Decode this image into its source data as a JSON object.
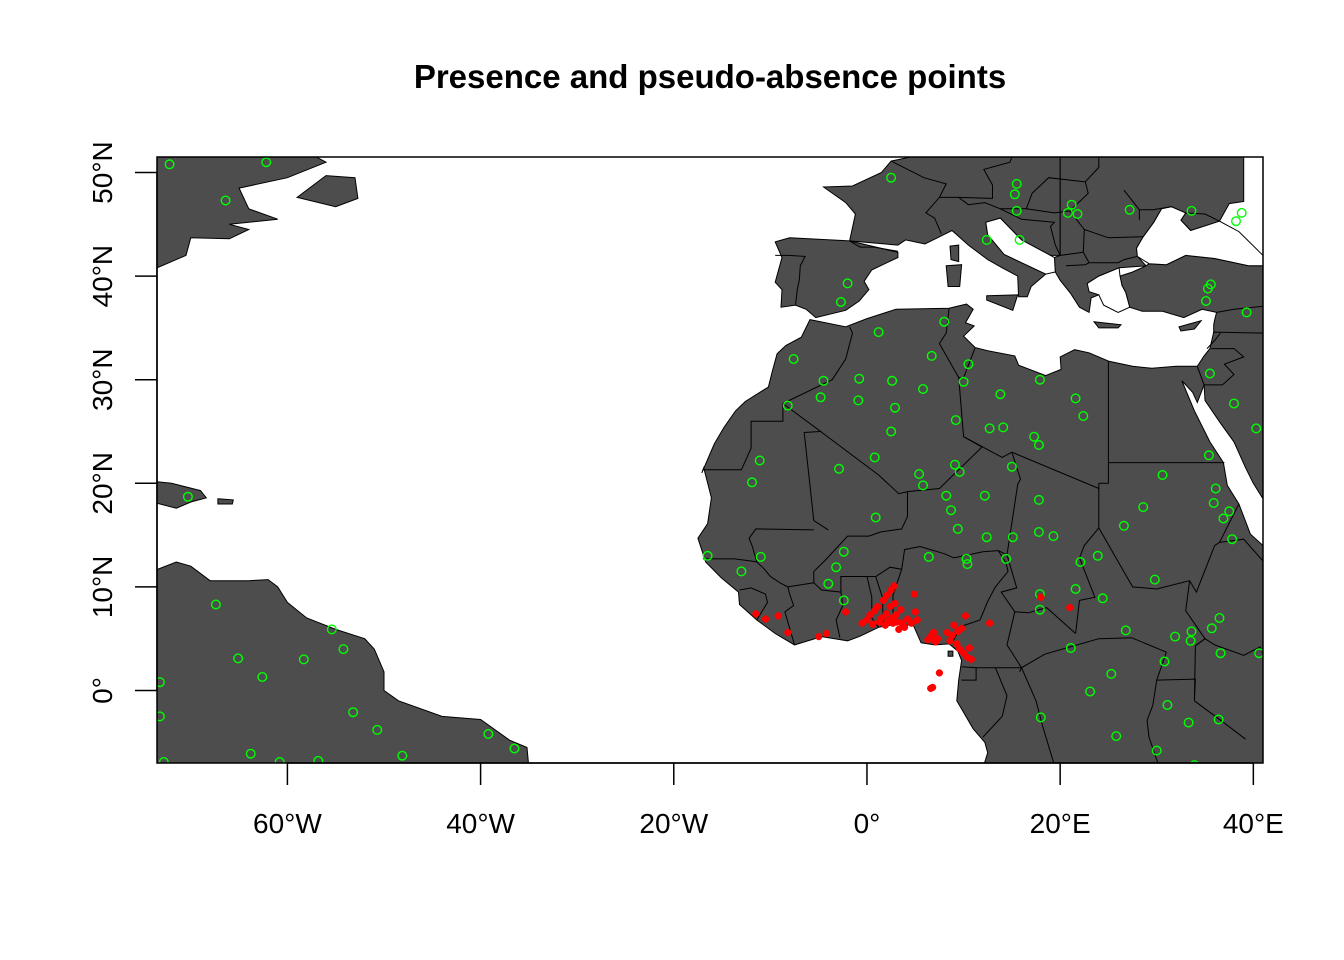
{
  "title": "Presence and pseudo-absence points",
  "map": {
    "extent": {
      "lon": [
        -73.5,
        41
      ],
      "lat": [
        -7,
        51.5
      ]
    },
    "colors": {
      "land": "#4d4d4d",
      "ocean": "#ffffff",
      "border": "#000000",
      "presence": "#ff0000",
      "absence": "#00ff00"
    },
    "x_ticks": [
      {
        "value": -60,
        "label": "60°W"
      },
      {
        "value": -40,
        "label": "40°W"
      },
      {
        "value": -20,
        "label": "20°W"
      },
      {
        "value": 0,
        "label": "0°"
      },
      {
        "value": 20,
        "label": "20°E"
      },
      {
        "value": 40,
        "label": "40°E"
      }
    ],
    "y_ticks": [
      {
        "value": 0,
        "label": "0°"
      },
      {
        "value": 10,
        "label": "10°N"
      },
      {
        "value": 20,
        "label": "20°N"
      },
      {
        "value": 30,
        "label": "30°N"
      },
      {
        "value": 40,
        "label": "40°N"
      },
      {
        "value": 50,
        "label": "50°N"
      }
    ],
    "presence_points": [
      [
        -11.5,
        7.4
      ],
      [
        -10.5,
        6.9
      ],
      [
        -9.2,
        7.2
      ],
      [
        -8.2,
        5.6
      ],
      [
        -5,
        5.2
      ],
      [
        -4.2,
        5.5
      ],
      [
        -2.2,
        7.6
      ],
      [
        -0.5,
        6.5
      ],
      [
        0,
        6.8
      ],
      [
        0.3,
        7.3
      ],
      [
        0.6,
        6.4
      ],
      [
        0.8,
        7.7
      ],
      [
        1.1,
        8.1
      ],
      [
        1.3,
        6.6
      ],
      [
        1.5,
        7.0
      ],
      [
        1.7,
        8.7
      ],
      [
        1.9,
        6.3
      ],
      [
        2.0,
        7.4
      ],
      [
        2.1,
        9.2
      ],
      [
        2.2,
        6.7
      ],
      [
        2.4,
        8.1
      ],
      [
        2.5,
        9.7
      ],
      [
        2.6,
        7.0
      ],
      [
        2.7,
        6.5
      ],
      [
        2.8,
        10.1
      ],
      [
        2.9,
        8.4
      ],
      [
        3.0,
        7.3
      ],
      [
        3.1,
        6.6
      ],
      [
        3.3,
        5.9
      ],
      [
        3.5,
        7.8
      ],
      [
        3.6,
        6.5
      ],
      [
        3.9,
        6.1
      ],
      [
        4.2,
        6.9
      ],
      [
        4.6,
        6.5
      ],
      [
        4.9,
        9.3
      ],
      [
        5.0,
        7.6
      ],
      [
        5.2,
        6.8
      ],
      [
        6.3,
        4.9
      ],
      [
        6.6,
        5.2
      ],
      [
        6.9,
        5.6
      ],
      [
        7.1,
        4.7
      ],
      [
        7.3,
        5.0
      ],
      [
        7.5,
        1.7
      ],
      [
        6.6,
        0.2
      ],
      [
        6.8,
        0.3
      ],
      [
        8.3,
        5.6
      ],
      [
        8.6,
        4.8
      ],
      [
        8.8,
        5.3
      ],
      [
        9.0,
        6.3
      ],
      [
        9.3,
        4.5
      ],
      [
        9.4,
        5.7
      ],
      [
        9.6,
        4.0
      ],
      [
        9.8,
        6.0
      ],
      [
        10.0,
        3.6
      ],
      [
        10.2,
        7.2
      ],
      [
        10.4,
        3.2
      ],
      [
        10.6,
        4.1
      ],
      [
        10.8,
        3.0
      ],
      [
        12.7,
        6.5
      ],
      [
        18.0,
        9.0
      ],
      [
        21.0,
        8.0
      ]
    ],
    "absence_points": [
      [
        -72.2,
        50.8
      ],
      [
        -62.2,
        51.0
      ],
      [
        -66.4,
        47.3
      ],
      [
        -70.3,
        18.7
      ],
      [
        -67.4,
        8.3
      ],
      [
        -65.1,
        3.1
      ],
      [
        -62.6,
        1.3
      ],
      [
        -58.3,
        3.0
      ],
      [
        -55.4,
        5.9
      ],
      [
        -54.2,
        4.0
      ],
      [
        -73.2,
        0.8
      ],
      [
        -73.2,
        -2.5
      ],
      [
        -72.8,
        -6.9
      ],
      [
        -53.2,
        -2.1
      ],
      [
        -50.7,
        -3.8
      ],
      [
        -48.1,
        -6.3
      ],
      [
        -63.8,
        -6.1
      ],
      [
        -60.8,
        -6.9
      ],
      [
        -56.8,
        -6.8
      ],
      [
        -39.2,
        -4.2
      ],
      [
        -36.5,
        -5.6
      ],
      [
        -16.5,
        13.0
      ],
      [
        -13.0,
        11.5
      ],
      [
        -11.0,
        12.9
      ],
      [
        -11.9,
        20.1
      ],
      [
        -11.1,
        22.2
      ],
      [
        -8.2,
        27.5
      ],
      [
        -7.6,
        32.0
      ],
      [
        -4.5,
        29.9
      ],
      [
        -4.8,
        28.3
      ],
      [
        -4.0,
        10.3
      ],
      [
        -3.2,
        11.9
      ],
      [
        -2.4,
        13.4
      ],
      [
        -2.4,
        8.7
      ],
      [
        -2.9,
        21.4
      ],
      [
        -0.8,
        30.1
      ],
      [
        -0.9,
        28.0
      ],
      [
        -2.7,
        37.5
      ],
      [
        -2.0,
        39.3
      ],
      [
        0.8,
        22.5
      ],
      [
        0.9,
        16.7
      ],
      [
        1.2,
        34.6
      ],
      [
        2.5,
        25.0
      ],
      [
        2.6,
        29.9
      ],
      [
        2.9,
        27.3
      ],
      [
        2.5,
        49.5
      ],
      [
        5.4,
        20.9
      ],
      [
        5.8,
        19.8
      ],
      [
        5.8,
        29.1
      ],
      [
        6.7,
        32.3
      ],
      [
        6.4,
        12.9
      ],
      [
        8.0,
        35.6
      ],
      [
        8.2,
        18.8
      ],
      [
        8.7,
        17.4
      ],
      [
        9.1,
        21.8
      ],
      [
        9.2,
        26.1
      ],
      [
        9.4,
        15.6
      ],
      [
        9.6,
        21.1
      ],
      [
        10.0,
        29.8
      ],
      [
        10.3,
        12.7
      ],
      [
        10.4,
        12.2
      ],
      [
        10.5,
        31.5
      ],
      [
        12.2,
        18.8
      ],
      [
        12.4,
        14.8
      ],
      [
        12.7,
        25.3
      ],
      [
        12.4,
        43.5
      ],
      [
        14.1,
        25.4
      ],
      [
        13.8,
        28.6
      ],
      [
        14.4,
        12.7
      ],
      [
        15.0,
        21.6
      ],
      [
        15.5,
        48.9
      ],
      [
        15.3,
        47.9
      ],
      [
        15.5,
        46.3
      ],
      [
        15.8,
        43.5
      ],
      [
        15.1,
        14.8
      ],
      [
        17.3,
        24.5
      ],
      [
        17.8,
        18.4
      ],
      [
        17.8,
        23.7
      ],
      [
        17.9,
        30.0
      ],
      [
        17.8,
        15.3
      ],
      [
        17.9,
        9.3
      ],
      [
        17.9,
        7.8
      ],
      [
        18.0,
        -2.6
      ],
      [
        19.3,
        14.9
      ],
      [
        20.8,
        46.1
      ],
      [
        21.2,
        46.9
      ],
      [
        21.8,
        46.0
      ],
      [
        21.6,
        28.2
      ],
      [
        22.4,
        26.5
      ],
      [
        21.6,
        9.8
      ],
      [
        22.1,
        12.4
      ],
      [
        21.1,
        4.1
      ],
      [
        23.1,
        -0.1
      ],
      [
        23.9,
        13.0
      ],
      [
        24.4,
        8.9
      ],
      [
        25.3,
        1.6
      ],
      [
        25.8,
        -4.4
      ],
      [
        26.6,
        15.9
      ],
      [
        26.8,
        5.8
      ],
      [
        27.2,
        46.4
      ],
      [
        28.6,
        17.7
      ],
      [
        29.8,
        10.7
      ],
      [
        30.0,
        -5.8
      ],
      [
        30.6,
        20.8
      ],
      [
        30.8,
        2.8
      ],
      [
        31.1,
        -1.4
      ],
      [
        31.9,
        5.2
      ],
      [
        33.3,
        -3.1
      ],
      [
        33.5,
        4.8
      ],
      [
        33.6,
        46.3
      ],
      [
        33.6,
        5.7
      ],
      [
        33.9,
        -7.2
      ],
      [
        35.1,
        37.6
      ],
      [
        35.3,
        38.8
      ],
      [
        35.6,
        39.2
      ],
      [
        35.7,
        6.0
      ],
      [
        35.5,
        30.6
      ],
      [
        35.4,
        22.7
      ],
      [
        35.9,
        18.1
      ],
      [
        36.1,
        19.5
      ],
      [
        36.4,
        -2.8
      ],
      [
        36.5,
        7.0
      ],
      [
        36.6,
        3.6
      ],
      [
        36.9,
        16.6
      ],
      [
        37.5,
        17.3
      ],
      [
        37.8,
        14.6
      ],
      [
        38.0,
        27.7
      ],
      [
        38.2,
        45.3
      ],
      [
        38.8,
        46.1
      ],
      [
        39.3,
        36.5
      ],
      [
        40.3,
        25.3
      ],
      [
        40.6,
        3.6
      ]
    ]
  }
}
